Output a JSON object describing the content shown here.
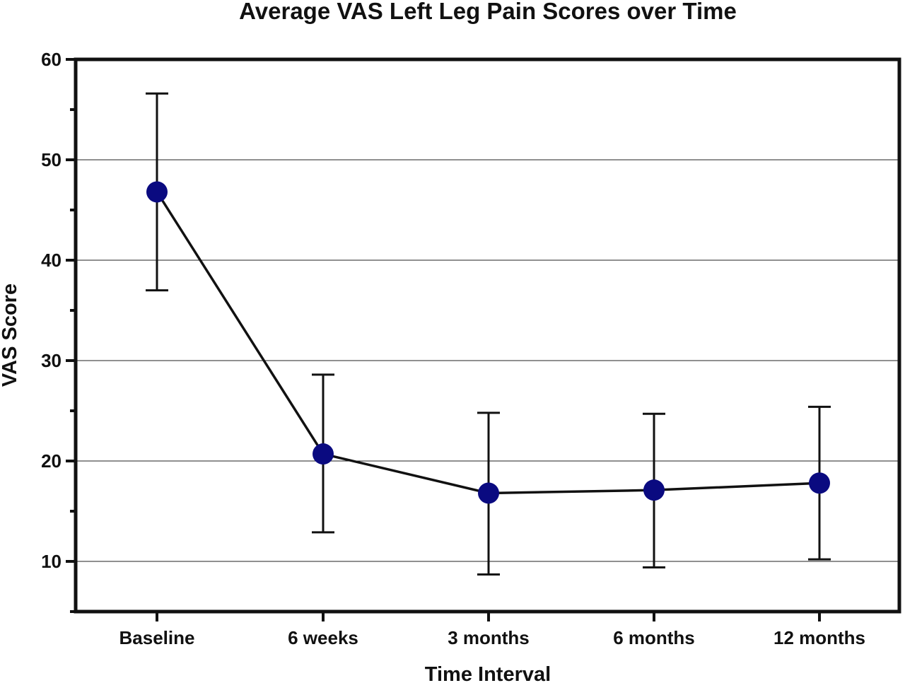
{
  "chart_data": {
    "type": "line",
    "title": "Average VAS Left Leg Pain Scores over Time",
    "xlabel": "Time Interval",
    "ylabel": "VAS Score",
    "categories": [
      "Baseline",
      "6 weeks",
      "3 months",
      "6 months",
      "12 months"
    ],
    "series": [
      {
        "values": [
          46.8,
          20.7,
          16.8,
          17.1,
          17.8
        ],
        "error_upper": [
          56.6,
          28.6,
          24.8,
          24.7,
          25.4
        ],
        "error_lower": [
          37.0,
          12.9,
          8.7,
          9.4,
          10.2
        ],
        "color": "#0a0a80"
      }
    ],
    "ylim": [
      5,
      60
    ],
    "yticks": [
      10,
      20,
      30,
      40,
      50,
      60
    ],
    "yticks_minor": [
      15,
      25,
      35,
      45,
      55
    ],
    "grid": "horizontal",
    "legend": "none"
  }
}
